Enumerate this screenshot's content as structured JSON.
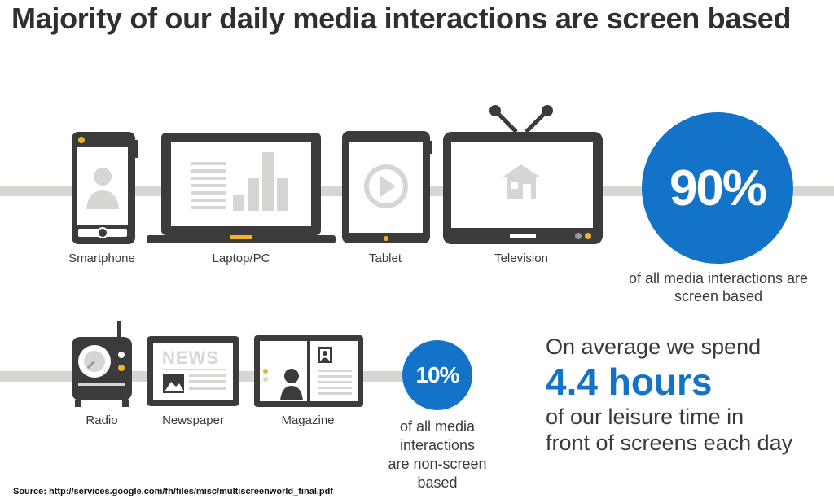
{
  "title": "Majority of our daily media interactions are screen based",
  "screen_devices": [
    {
      "label": "Smartphone"
    },
    {
      "label": "Laptop/PC"
    },
    {
      "label": "Tablet"
    },
    {
      "label": "Television"
    }
  ],
  "non_screen_devices": [
    {
      "label": "Radio"
    },
    {
      "label": "Newspaper",
      "icon_text": "NEWS"
    },
    {
      "label": "Magazine"
    }
  ],
  "screen_stat": {
    "value": "90%",
    "caption_line1": "of all media interactions are",
    "caption_line2": "screen based"
  },
  "non_screen_stat": {
    "value": "10%",
    "caption_line1": "of all media",
    "caption_line2": "interactions",
    "caption_line3": "are non-screen",
    "caption_line4": "based"
  },
  "leisure": {
    "line1": "On average we spend",
    "hours": "4.4 hours",
    "line2": "of our leisure time in",
    "line3": "front of screens each day"
  },
  "source": "Source: http://services.google.com/fh/files/misc/multiscreenworld_final.pdf",
  "colors": {
    "accent_blue": "#1273c8",
    "device_dark": "#3b3b3b",
    "indicator_yellow": "#f5b223",
    "rail_gray": "#d6d6d2"
  }
}
